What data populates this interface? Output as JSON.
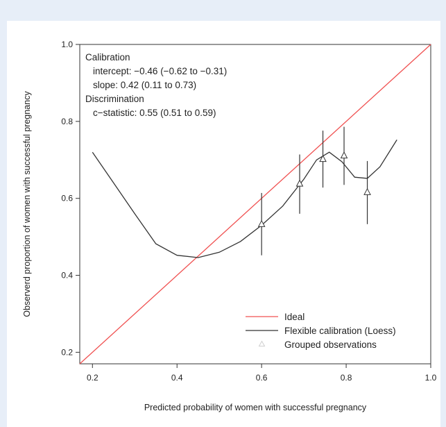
{
  "chart_data": {
    "type": "line",
    "xlabel": "Predicted probability of women with successful pregnancy",
    "ylabel": "Observerd proportion of women with successful pregnancy",
    "xlim": [
      0.17,
      1.0
    ],
    "ylim": [
      0.17,
      1.0
    ],
    "xticks": [
      "0.2",
      "0.4",
      "0.6",
      "0.8",
      "1.0"
    ],
    "yticks": [
      "0.2",
      "0.4",
      "0.6",
      "0.8",
      "1.0"
    ],
    "grid": false,
    "legend_position": "bottom-right",
    "annotation": [
      "Calibration",
      "intercept: −0.46 (−0.62 to −0.31)",
      "slope: 0.42 (0.11 to 0.73)",
      "Discrimination",
      "c−statistic: 0.55 (0.51 to 0.59)"
    ],
    "series": [
      {
        "name": "Ideal",
        "color": "#f05050",
        "style": "line",
        "x": [
          0.17,
          1.0
        ],
        "y": [
          0.17,
          1.0
        ]
      },
      {
        "name": "Flexible calibration (Loess)",
        "color": "#333333",
        "style": "line",
        "x": [
          0.2,
          0.25,
          0.3,
          0.35,
          0.4,
          0.45,
          0.5,
          0.55,
          0.6,
          0.65,
          0.7,
          0.73,
          0.76,
          0.79,
          0.82,
          0.85,
          0.88,
          0.92
        ],
        "y": [
          0.72,
          0.64,
          0.56,
          0.482,
          0.452,
          0.446,
          0.46,
          0.488,
          0.53,
          0.58,
          0.65,
          0.7,
          0.72,
          0.695,
          0.655,
          0.652,
          0.682,
          0.752
        ]
      },
      {
        "name": "Grouped observations",
        "color": "#333333",
        "style": "points",
        "x": [
          0.6,
          0.69,
          0.745,
          0.795,
          0.85
        ],
        "y": [
          0.533,
          0.638,
          0.702,
          0.711,
          0.616
        ],
        "lower": [
          0.452,
          0.56,
          0.628,
          0.635,
          0.533
        ],
        "upper": [
          0.614,
          0.714,
          0.776,
          0.786,
          0.697
        ]
      }
    ]
  }
}
